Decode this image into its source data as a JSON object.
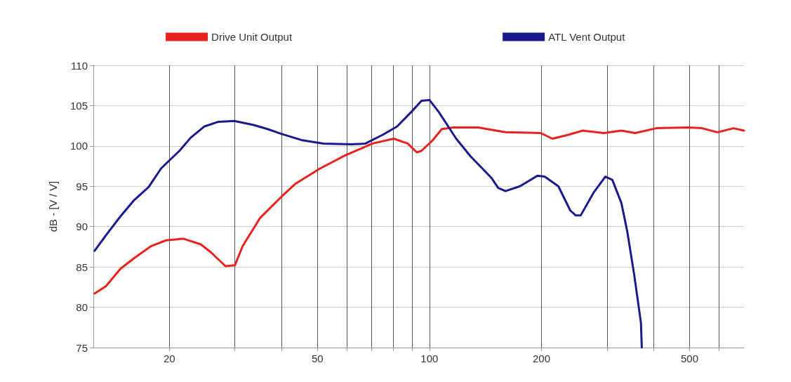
{
  "chart_data": {
    "type": "line",
    "ylabel": "dB - [V / V]",
    "log": "x",
    "xlim": [
      12.5,
      700
    ],
    "ylim": [
      75,
      110
    ],
    "xticks": [
      20,
      {
        "value": 30,
        "label": null
      },
      {
        "value": 40,
        "label": null
      },
      50,
      {
        "value": 60,
        "label": null
      },
      {
        "value": 70,
        "label": null
      },
      {
        "value": 80,
        "label": null
      },
      {
        "value": 90,
        "label": null
      },
      100,
      200,
      {
        "value": 300,
        "label": null
      },
      {
        "value": 400,
        "label": null
      },
      500,
      {
        "value": 600,
        "label": null
      }
    ],
    "yticks": [
      75,
      80,
      85,
      90,
      95,
      100,
      105,
      110
    ],
    "grid": true,
    "legend": "top",
    "marker": "none",
    "line_style": "solid",
    "series": [
      {
        "name": "Drive Unit Output",
        "color": "#e8231f",
        "x": [
          12.6,
          13.5,
          14.8,
          16.1,
          17.9,
          19.6,
          21.8,
          24.3,
          25.9,
          28.3,
          30,
          31.5,
          35.1,
          40,
          43.6,
          50.8,
          59.2,
          70.3,
          80.2,
          87.4,
          92.5,
          95.2,
          102,
          108,
          116,
          135,
          160,
          199,
          214,
          237,
          258,
          294,
          328,
          357,
          407,
          496,
          540,
          594,
          656,
          700
        ],
        "values": [
          81.7,
          82.6,
          84.8,
          86.1,
          87.6,
          88.3,
          88.5,
          87.8,
          86.8,
          85.1,
          85.2,
          87.6,
          91.1,
          93.7,
          95.3,
          97.2,
          98.8,
          100.3,
          100.9,
          100.3,
          99.2,
          99.4,
          100.7,
          102.1,
          102.3,
          102.3,
          101.7,
          101.6,
          100.9,
          101.4,
          101.9,
          101.6,
          101.9,
          101.6,
          102.2,
          102.3,
          102.2,
          101.7,
          102.2,
          101.9
        ]
      },
      {
        "name": "ATL Vent Output",
        "color": "#1a1a8c",
        "x": [
          12.6,
          13.5,
          14.8,
          16.1,
          17.6,
          19,
          20,
          21.3,
          22.8,
          24.8,
          27.1,
          29.9,
          33.7,
          36.7,
          40,
          45.6,
          51.9,
          61.8,
          67.3,
          75,
          81.8,
          89.3,
          95.2,
          100,
          106,
          118,
          129,
          147,
          153,
          160,
          175,
          195,
          204,
          222,
          239,
          247,
          255,
          276,
          297,
          310,
          328,
          340,
          355,
          370,
          372
        ],
        "values": [
          87,
          88.9,
          91.3,
          93.3,
          94.9,
          97.2,
          98.2,
          99.4,
          101,
          102.4,
          103,
          103.1,
          102.6,
          102.1,
          101.5,
          100.7,
          100.3,
          100.2,
          100.3,
          101.4,
          102.4,
          104.2,
          105.6,
          105.7,
          104.2,
          100.9,
          98.7,
          96,
          94.8,
          94.4,
          95,
          96.3,
          96.2,
          95,
          92,
          91.4,
          91.4,
          94.2,
          96.2,
          95.8,
          92.9,
          89.4,
          84,
          78.1,
          75
        ]
      }
    ]
  }
}
